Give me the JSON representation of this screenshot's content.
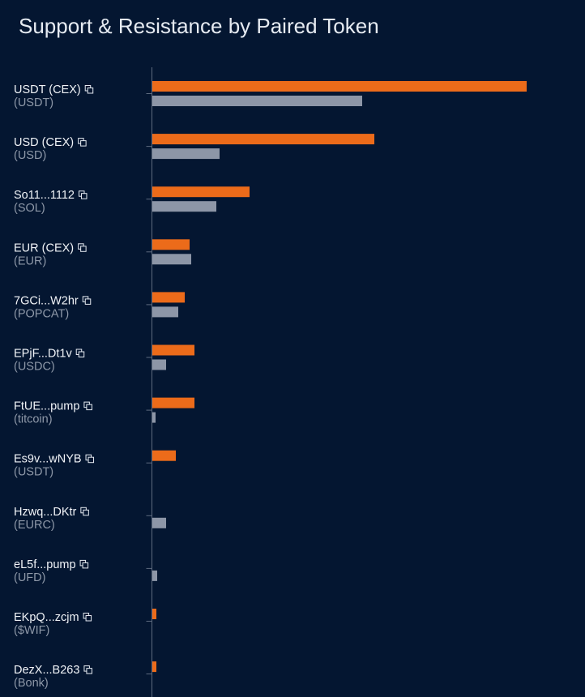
{
  "chart_data": {
    "type": "bar",
    "orientation": "horizontal",
    "title": "Support & Resistance by Paired Token",
    "xlabel": "",
    "ylabel": "",
    "categories": [
      {
        "name": "USDT (CEX)",
        "symbol": "(USDT)"
      },
      {
        "name": "USD (CEX)",
        "symbol": "(USD)"
      },
      {
        "name": "So11...1112",
        "symbol": "(SOL)"
      },
      {
        "name": "EUR (CEX)",
        "symbol": "(EUR)"
      },
      {
        "name": "7GCi...W2hr",
        "symbol": "(POPCAT)"
      },
      {
        "name": "EPjF...Dt1v",
        "symbol": "(USDC)"
      },
      {
        "name": "FtUE...pump",
        "symbol": "(titcoin)"
      },
      {
        "name": "Es9v...wNYB",
        "symbol": "(USDT)"
      },
      {
        "name": "Hzwq...DKtr",
        "symbol": "(EURC)"
      },
      {
        "name": "eL5f...pump",
        "symbol": "(UFD)"
      },
      {
        "name": "EKpQ...zcjm",
        "symbol": "($WIF)"
      },
      {
        "name": "DezX...B263",
        "symbol": "(Bonk)"
      }
    ],
    "series": [
      {
        "color": "#ec6b1a",
        "values": [
          462,
          274,
          120,
          46,
          40,
          52,
          52,
          29,
          0,
          0,
          5,
          5
        ]
      },
      {
        "color": "#8d96a7",
        "values": [
          259,
          83,
          79,
          48,
          32,
          17,
          4,
          0,
          17,
          6,
          0,
          0
        ]
      }
    ],
    "xlim": [
      0,
      500
    ],
    "grid": false,
    "legend": "none",
    "x_ticks_shown": false
  },
  "icons": {
    "copy": "copy-icon"
  },
  "colors": {
    "background": "#041631",
    "axis": "#5d6a7e",
    "title": "#e6ebf2"
  }
}
